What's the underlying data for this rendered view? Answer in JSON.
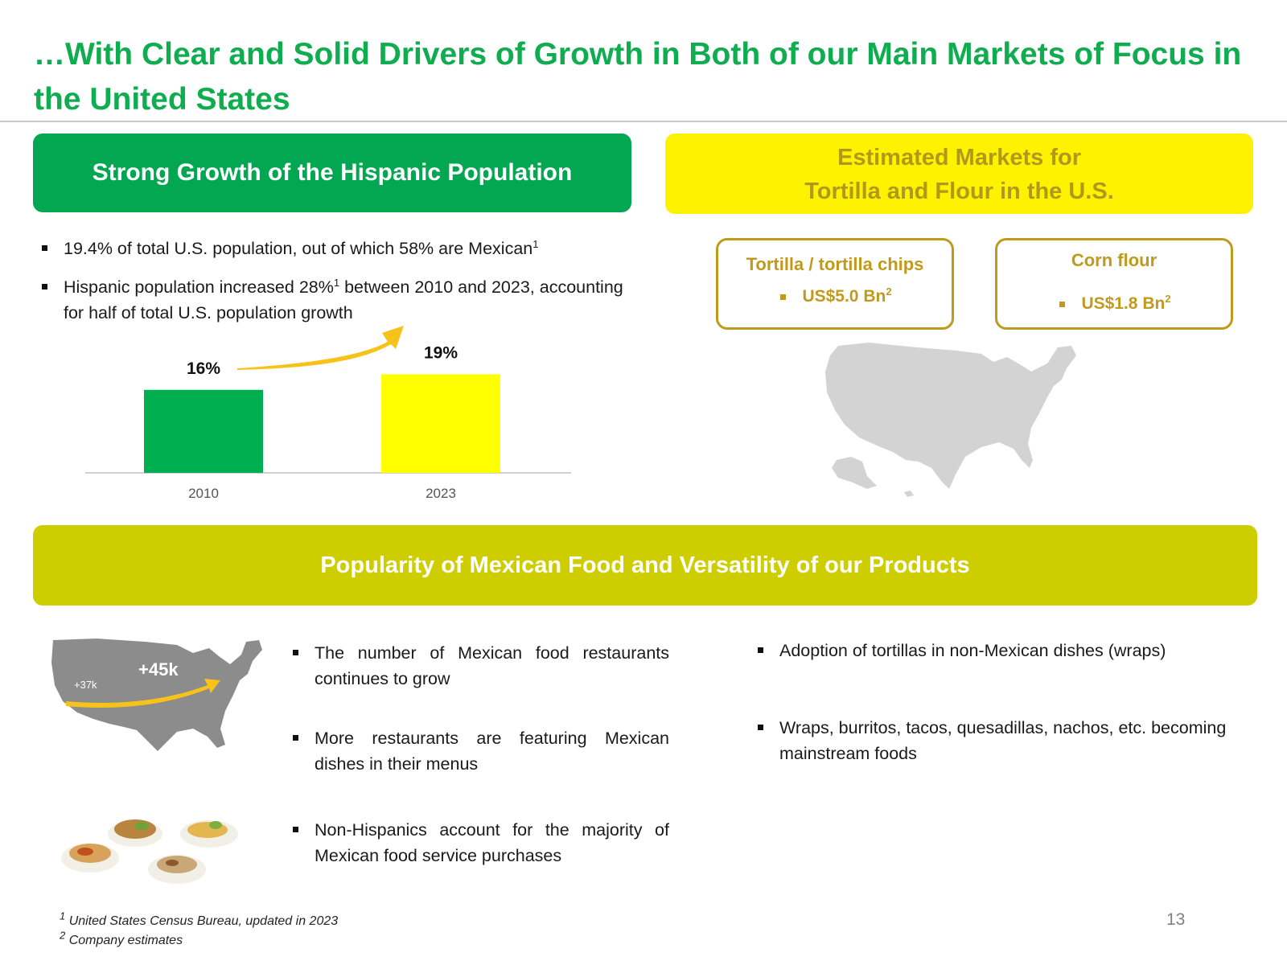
{
  "title": "…With Clear and Solid Drivers of Growth in Both of our Main Markets of Focus in the United States",
  "left_header": "Strong Growth of the Hispanic Population",
  "right_header": {
    "line1": "Estimated Markets for",
    "line2": "Tortilla and Flour in the U.S."
  },
  "hispanic_bullets": [
    {
      "text": "19.4% of total U.S. population, out of which 58% are Mexican",
      "sup": "1"
    },
    {
      "text_a": "Hispanic population increased 28%",
      "sup": "1",
      "text_b": " between 2010 and 2023, accounting for half of total U.S. population growth"
    }
  ],
  "markets": [
    {
      "name": "Tortilla / tortilla chips",
      "value": "US$5.0 Bn",
      "sup": "2"
    },
    {
      "name": "Corn flour",
      "value": "US$1.8 Bn",
      "sup": "2"
    }
  ],
  "chart_data": {
    "type": "bar",
    "title": "",
    "xlabel": "",
    "ylabel": "",
    "categories": [
      "2010",
      "2023"
    ],
    "values": [
      16,
      19
    ],
    "value_labels": [
      "16%",
      "19%"
    ],
    "colors": [
      "#00b050",
      "#ffff00"
    ],
    "grid": false,
    "legend": "none"
  },
  "popularity_header": "Popularity of Mexican Food and Versatility of  our Products",
  "restaurant_map": {
    "west_label": "+37k",
    "east_label": "+45k"
  },
  "popularity_bullets_left": [
    "The number of Mexican food restaurants continues to grow",
    "More restaurants are featuring Mexican dishes in their menus",
    "Non-Hispanics account for the majority of Mexican food service purchases"
  ],
  "popularity_bullets_right": [
    "Adoption of tortillas in non-Mexican dishes (wraps)",
    "Wraps, burritos, tacos, quesadillas, nachos, etc. becoming mainstream foods"
  ],
  "footnotes": [
    {
      "num": "1",
      "text": "United States Census Bureau, updated in 2023"
    },
    {
      "num": "2",
      "text": "Company estimates"
    }
  ],
  "page_number": "13",
  "colors": {
    "title_green": "#0fad4f",
    "header_green": "#03a651",
    "header_yellow": "#fff200",
    "header_olive": "#cdcd00",
    "gold": "#c09a1c",
    "map_gray": "#d3d3d3"
  }
}
